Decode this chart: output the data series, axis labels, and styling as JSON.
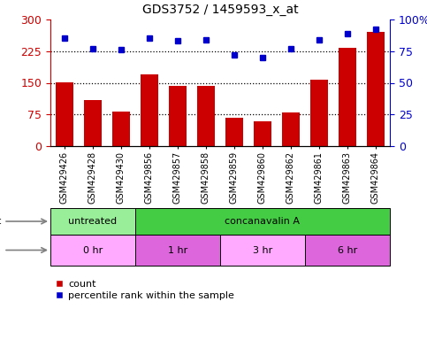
{
  "title": "GDS3752 / 1459593_x_at",
  "samples": [
    "GSM429426",
    "GSM429428",
    "GSM429430",
    "GSM429856",
    "GSM429857",
    "GSM429858",
    "GSM429859",
    "GSM429860",
    "GSM429862",
    "GSM429861",
    "GSM429863",
    "GSM429864"
  ],
  "counts": [
    152,
    110,
    82,
    170,
    143,
    143,
    68,
    58,
    80,
    158,
    232,
    270
  ],
  "percentiles": [
    85,
    77,
    76,
    85,
    83,
    84,
    72,
    70,
    77,
    84,
    89,
    92
  ],
  "bar_color": "#CC0000",
  "dot_color": "#0000CC",
  "left_ylim": [
    0,
    300
  ],
  "right_ylim": [
    0,
    100
  ],
  "left_yticks": [
    0,
    75,
    150,
    225,
    300
  ],
  "right_yticks": [
    0,
    25,
    50,
    75,
    100
  ],
  "right_yticklabels": [
    "0",
    "25",
    "50",
    "75",
    "100%"
  ],
  "hlines": [
    75,
    150,
    225
  ],
  "agent_labels": [
    {
      "text": "untreated",
      "start": 0,
      "end": 3,
      "color": "#99EE99"
    },
    {
      "text": "concanavalin A",
      "start": 3,
      "end": 12,
      "color": "#44CC44"
    }
  ],
  "time_labels": [
    {
      "text": "0 hr",
      "start": 0,
      "end": 3,
      "color": "#FFAAFF"
    },
    {
      "text": "1 hr",
      "start": 3,
      "end": 6,
      "color": "#DD66DD"
    },
    {
      "text": "3 hr",
      "start": 6,
      "end": 9,
      "color": "#FFAAFF"
    },
    {
      "text": "6 hr",
      "start": 9,
      "end": 12,
      "color": "#DD66DD"
    }
  ],
  "legend_count_label": "count",
  "legend_percentile_label": "percentile rank within the sample"
}
